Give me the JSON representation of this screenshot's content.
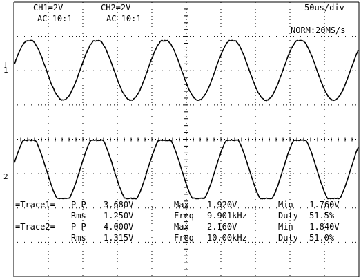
{
  "header": {
    "ch1_scale": "CH1=2V",
    "ch1_coupling": "AC 10:1",
    "ch2_scale": "CH2=2V",
    "ch2_coupling": "AC 10:1",
    "timebase": "50us/div",
    "trigger_mode": "NORM:20MS/s"
  },
  "markers": {
    "ch1": "1",
    "ch2": "2",
    "trigger": "T"
  },
  "measurements": {
    "trace1": {
      "label": "=Trace1=",
      "pp_label": "P-P",
      "pp": "3.680V",
      "max_label": "Max",
      "max": "1.920V",
      "min_label": "Min",
      "min": "-1.760V",
      "rms_label": "Rms",
      "rms": "1.250V",
      "freq_label": "Freq",
      "freq": "9.901kHz",
      "duty_label": "Duty",
      "duty": "51.5%"
    },
    "trace2": {
      "label": "=Trace2=",
      "pp_label": "P-P",
      "pp": "4.000V",
      "max_label": "Max",
      "max": "2.160V",
      "min_label": "Min",
      "min": "-1.840V",
      "rms_label": "Rms",
      "rms": "1.315V",
      "freq_label": "Freq",
      "freq": "10.00kHz",
      "duty_label": "Duty",
      "duty": "51.0%"
    }
  },
  "colors": {
    "background": "#ffffff",
    "grid": "#000000",
    "trace": "#000000"
  }
}
